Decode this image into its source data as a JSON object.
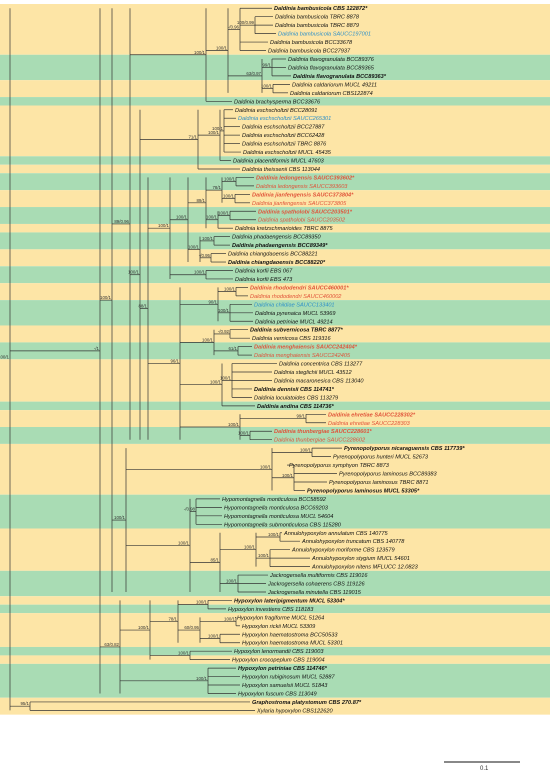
{
  "scale_bar": {
    "label": "0.1"
  },
  "colors": {
    "band_yellow": "#fde5a6",
    "band_green": "#a9dcb4",
    "highlight_blue": "#2b8fc9",
    "highlight_red": "#e0533a"
  },
  "legend_note": "",
  "taxa": [
    {
      "name": "Daldinia bambusicola CBS 122872*",
      "bold": true,
      "color": "black",
      "band": "yellow"
    },
    {
      "name": "Daldinia bambusicola TBRC 8878",
      "bold": false,
      "color": "black",
      "band": "yellow"
    },
    {
      "name": "Daldinia bambusicola TBRC 8879",
      "bold": false,
      "color": "black",
      "band": "yellow"
    },
    {
      "name": "Daldinia bambusicola SAUCC197001",
      "bold": false,
      "color": "blue",
      "band": "yellow"
    },
    {
      "name": "Daldinia bambusicola BCC33678",
      "bold": false,
      "color": "black",
      "band": "yellow"
    },
    {
      "name": "Daldinia bambusicola BCC27937",
      "bold": false,
      "color": "black",
      "band": "yellow"
    },
    {
      "name": "Daldinia flavogranulata BCC89376",
      "bold": false,
      "color": "black",
      "band": "green"
    },
    {
      "name": "Daldinia flavogranulata BCC89365",
      "bold": false,
      "color": "black",
      "band": "green"
    },
    {
      "name": "Daldinia flavogranulata BCC89363*",
      "bold": true,
      "color": "black",
      "band": "green"
    },
    {
      "name": "Daldinia caldariorum MUCL 49211",
      "bold": false,
      "color": "black",
      "band": "yellow"
    },
    {
      "name": "Daldinia caldariorum CBS122874",
      "bold": false,
      "color": "black",
      "band": "yellow"
    },
    {
      "name": "Daldinia brachysperma BCC33676",
      "bold": false,
      "color": "black",
      "band": "green"
    },
    {
      "name": "Daldinia eschscholtzii BCC28091",
      "bold": false,
      "color": "black",
      "band": "yellow"
    },
    {
      "name": "Daldinia eschscholtzii SAUCC265301",
      "bold": false,
      "color": "blue",
      "band": "yellow"
    },
    {
      "name": "Daldinia eschscholtzii BCC27887",
      "bold": false,
      "color": "black",
      "band": "yellow"
    },
    {
      "name": "Daldinia eschscholtzii BCC62428",
      "bold": false,
      "color": "black",
      "band": "yellow"
    },
    {
      "name": "Daldinia eschscholtzii TBRC 8876",
      "bold": false,
      "color": "black",
      "band": "yellow"
    },
    {
      "name": "Daldinia eschscholtzii MUCL 45435",
      "bold": false,
      "color": "black",
      "band": "yellow"
    },
    {
      "name": "Daldinia placentiformis MUCL 47603",
      "bold": false,
      "color": "black",
      "band": "green"
    },
    {
      "name": "Daldinia theissenii CBS 113044",
      "bold": false,
      "color": "black",
      "band": "yellow"
    },
    {
      "name": "Daldinia ledongensis SAUCC393602*",
      "bold": true,
      "color": "red",
      "band": "green"
    },
    {
      "name": "Daldinia ledongensis SAUCC393603",
      "bold": false,
      "color": "red",
      "band": "green"
    },
    {
      "name": "Daldinia jianfengensis SAUCC373804*",
      "bold": true,
      "color": "red",
      "band": "yellow"
    },
    {
      "name": "Daldinia jianfengensis SAUCC373805",
      "bold": false,
      "color": "red",
      "band": "yellow"
    },
    {
      "name": "Daldinia spatholobi SAUCC203501*",
      "bold": true,
      "color": "red",
      "band": "green"
    },
    {
      "name": "Daldinia spatholobi SAUCC203502",
      "bold": false,
      "color": "red",
      "band": "green"
    },
    {
      "name": "Daldinia kretzschmarioides TBRC 8875",
      "bold": false,
      "color": "black",
      "band": "yellow"
    },
    {
      "name": "Daldinia phadaengensis BCC89350",
      "bold": false,
      "color": "black",
      "band": "green"
    },
    {
      "name": "Daldinia phadaengensis BCC89349*",
      "bold": true,
      "color": "black",
      "band": "green"
    },
    {
      "name": "Daldinia chiangdaoensis BCC88221",
      "bold": false,
      "color": "black",
      "band": "yellow"
    },
    {
      "name": "Daldinia chiangdaoensis BCC88220*",
      "bold": true,
      "color": "black",
      "band": "yellow"
    },
    {
      "name": "Daldinia korfii EBS 067",
      "bold": false,
      "color": "black",
      "band": "green"
    },
    {
      "name": "Daldinia korfii EBS 473",
      "bold": false,
      "color": "black",
      "band": "green"
    },
    {
      "name": "Daldinia rhododendri SAUCC460001*",
      "bold": true,
      "color": "red",
      "band": "yellow"
    },
    {
      "name": "Daldinia rhododendri SAUCC460002",
      "bold": false,
      "color": "red",
      "band": "yellow"
    },
    {
      "name": "Daldinia childiae SAUCC133401",
      "bold": false,
      "color": "blue",
      "band": "green"
    },
    {
      "name": "Daldinia pyrenaica MUCL 53969",
      "bold": false,
      "color": "black",
      "band": "green"
    },
    {
      "name": "Daldinia petriniae MUCL 49214",
      "bold": false,
      "color": "black",
      "band": "green"
    },
    {
      "name": "Daldinia subvernicosa TBRC 8877*",
      "bold": true,
      "color": "black",
      "band": "yellow"
    },
    {
      "name": "Daldinia vernicosa CBS 119316",
      "bold": false,
      "color": "black",
      "band": "yellow"
    },
    {
      "name": "Daldinia menghaiensis SAUCC242404*",
      "bold": true,
      "color": "red",
      "band": "green"
    },
    {
      "name": "Daldinia menghaiensis SAUCC242405",
      "bold": false,
      "color": "red",
      "band": "green"
    },
    {
      "name": "Daldinia concentrica CBS 113277",
      "bold": false,
      "color": "black",
      "band": "yellow"
    },
    {
      "name": "Daldinia steglichii MUCL 43512",
      "bold": false,
      "color": "black",
      "band": "yellow"
    },
    {
      "name": "Daldinia macaronesica CBS 113040",
      "bold": false,
      "color": "black",
      "band": "yellow"
    },
    {
      "name": "Daldinia dennisii CBS 114741*",
      "bold": true,
      "color": "black",
      "band": "yellow"
    },
    {
      "name": "Daldinia loculatoides CBS 113279",
      "bold": false,
      "color": "black",
      "band": "yellow"
    },
    {
      "name": "Daldinia andina CBS 114736*",
      "bold": true,
      "color": "black",
      "band": "green"
    },
    {
      "name": "Daldinia ehretiae SAUCC228302*",
      "bold": true,
      "color": "red",
      "band": "yellow"
    },
    {
      "name": "Daldinia ehretiae SAUCC228303",
      "bold": false,
      "color": "red",
      "band": "yellow"
    },
    {
      "name": "Daldinia thunbergiae SAUCC228601*",
      "bold": true,
      "color": "red",
      "band": "green"
    },
    {
      "name": "Daldinia thunbergiae SAUCC228602",
      "bold": false,
      "color": "red",
      "band": "green"
    },
    {
      "name": "Pyrenopolyporus nicaraguensis CBS 117739*",
      "bold": true,
      "color": "black",
      "band": "yellow"
    },
    {
      "name": "Pyrenopolyporus hunteri MUCL 52673",
      "bold": false,
      "color": "black",
      "band": "yellow"
    },
    {
      "name": "Pyrenopolyporus symphyon TBRC 8873",
      "bold": false,
      "color": "black",
      "band": "yellow"
    },
    {
      "name": "Pyrenopolyporus laminosus BCC89383",
      "bold": false,
      "color": "black",
      "band": "yellow"
    },
    {
      "name": "Pyrenopolyporus laminosus TBRC 8871",
      "bold": false,
      "color": "black",
      "band": "yellow"
    },
    {
      "name": "Pyrenopolyporus laminosus MUCL 53305*",
      "bold": true,
      "color": "black",
      "band": "yellow"
    },
    {
      "name": "Hypomontagnella monticulosa BCC58592",
      "bold": false,
      "color": "black",
      "band": "green"
    },
    {
      "name": "Hypomontagnella monticulosa BCC69203",
      "bold": false,
      "color": "black",
      "band": "green"
    },
    {
      "name": "Hypomontagnella monticulosa MUCL 54604",
      "bold": false,
      "color": "black",
      "band": "green"
    },
    {
      "name": "Hypomontagnella submonticulosa CBS 115280",
      "bold": false,
      "color": "black",
      "band": "green"
    },
    {
      "name": "Annulohypoxylon annulatum CBS 140775",
      "bold": false,
      "color": "black",
      "band": "yellow"
    },
    {
      "name": "Annulohypoxylon truncatum CBS 140778",
      "bold": false,
      "color": "black",
      "band": "yellow"
    },
    {
      "name": "Annulohypoxylon moriforme CBS 123579",
      "bold": false,
      "color": "black",
      "band": "yellow"
    },
    {
      "name": "Annulohypoxylon stygium MUCL 54601",
      "bold": false,
      "color": "black",
      "band": "yellow"
    },
    {
      "name": "Annulohypoxylon nitens MFLUCC 12.0823",
      "bold": false,
      "color": "black",
      "band": "yellow"
    },
    {
      "name": "Jackrogersella multiformis CBS 119016",
      "bold": false,
      "color": "black",
      "band": "green"
    },
    {
      "name": "Jackrogersella cohaerens CBS 119126",
      "bold": false,
      "color": "black",
      "band": "green"
    },
    {
      "name": "Jackrogersella minutella CBS 119015",
      "bold": false,
      "color": "black",
      "band": "green"
    },
    {
      "name": "Hypoxylon lateripigmentum MUCL 53304*",
      "bold": true,
      "color": "black",
      "band": "yellow"
    },
    {
      "name": "Hypoxylon investiens CBS 118183",
      "bold": false,
      "color": "black",
      "band": "green"
    },
    {
      "name": "Hypoxylon fragiforme MUCL 51264",
      "bold": false,
      "color": "black",
      "band": "yellow"
    },
    {
      "name": "Hypoxylon rickii MUCL 53309",
      "bold": false,
      "color": "black",
      "band": "yellow"
    },
    {
      "name": "Hypoxylon haematostroma BCC50533",
      "bold": false,
      "color": "black",
      "band": "yellow"
    },
    {
      "name": "Hypoxylon haematostroma MUCL 53301",
      "bold": false,
      "color": "black",
      "band": "yellow"
    },
    {
      "name": "Hypoxylon lenormandii CBS 119003",
      "bold": false,
      "color": "black",
      "band": "green"
    },
    {
      "name": "Hypoxylon crocopeplum CBS 119004",
      "bold": false,
      "color": "black",
      "band": "yellow"
    },
    {
      "name": "Hypoxylon petriniae CBS 114746*",
      "bold": true,
      "color": "black",
      "band": "green"
    },
    {
      "name": "Hypoxylon rubiginosum MUCL 52887",
      "bold": false,
      "color": "black",
      "band": "green"
    },
    {
      "name": "Hypoxylon samuelsii MUCL 51843",
      "bold": false,
      "color": "black",
      "band": "green"
    },
    {
      "name": "Hypoxylon fuscum CBS 113049",
      "bold": false,
      "color": "black",
      "band": "green"
    },
    {
      "name": "Graphostroma platystomum CBS 270.87*",
      "bold": true,
      "color": "black",
      "band": "yellow"
    },
    {
      "name": "Xylaria hypoxylon CBS122620",
      "bold": false,
      "color": "black",
      "band": "yellow"
    }
  ],
  "supports": [
    "-/0.96",
    "100/0.99",
    "99/1",
    "100/1",
    "63/0.97",
    "100/1",
    "100/1",
    "100/1",
    "100/1",
    "71/1",
    "100/1",
    "100/1",
    "78/1",
    "100/1",
    "100/1",
    "89/1",
    "100/1",
    "-/0.95",
    "100/1",
    "100/1",
    "100/1",
    "100/1",
    "100/1",
    "100/1",
    "90/1",
    "-/0.92",
    "61/1",
    "100/1",
    "100/1",
    "100/1",
    "99/1",
    "100/1",
    "100/1",
    "96/1",
    "88/1",
    "100/1",
    "89/0.96",
    "100/1",
    "100/1",
    "100/1",
    "-/0.98",
    "100/1",
    "100/1",
    "100/1",
    "100/1",
    "85/1",
    "100/1",
    "100/1",
    "100/1",
    "100/1",
    "100/1",
    "100/1",
    "60/0.95",
    "78/1",
    "100/1",
    "100/1",
    "100/1",
    "63/0.82",
    "-/1",
    "95/1",
    "100/1",
    "100/1",
    "100/1",
    "100/1",
    "-/1",
    "-/1",
    "100/1"
  ]
}
